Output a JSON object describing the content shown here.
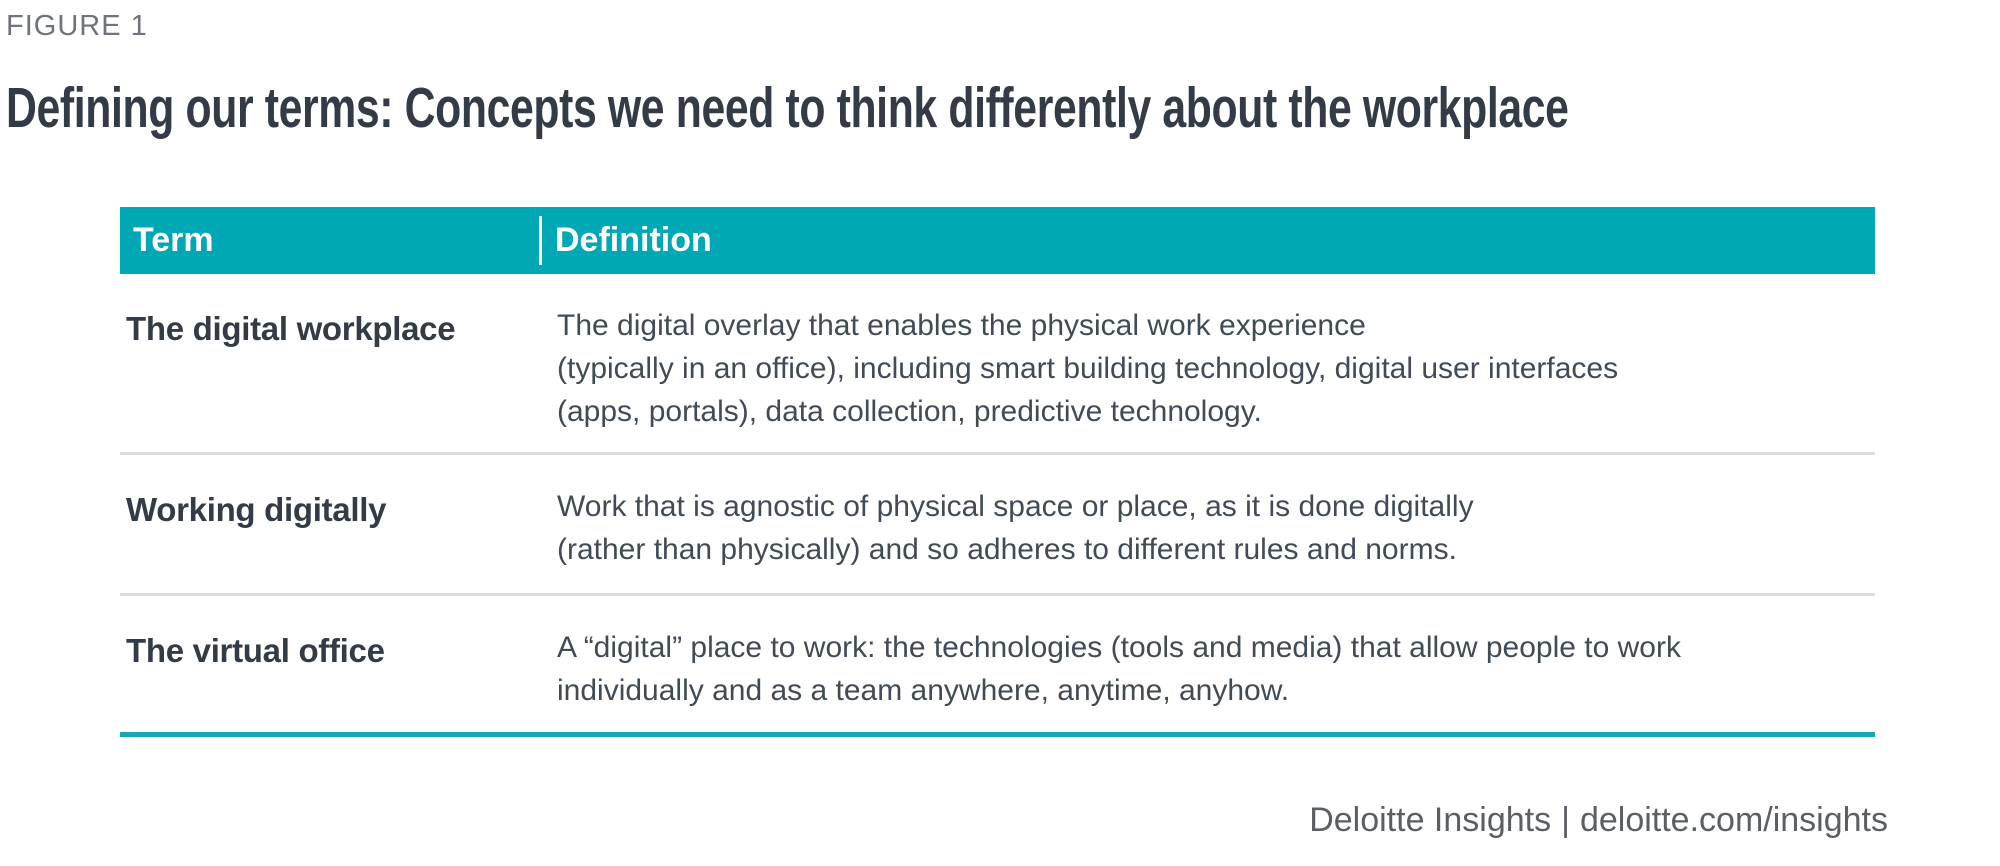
{
  "figure": {
    "label": "FIGURE 1",
    "title": "Defining our terms: Concepts we need to think differently about the workplace"
  },
  "table": {
    "columns": {
      "term": "Term",
      "definition": "Definition"
    },
    "rows": [
      {
        "term": "The digital workplace",
        "definition": "The digital overlay that enables the physical work experience\n(typically in an office), including smart building technology, digital user interfaces\n(apps, portals), data collection, predictive technology."
      },
      {
        "term": "Working digitally",
        "definition": "Work that is agnostic of physical space or place, as it is done digitally\n(rather than physically) and so adheres to different rules and norms."
      },
      {
        "term": "The virtual office",
        "definition": "A “digital” place to work: the technologies (tools and media) that allow people to work\nindividually and as a team anywhere, anytime, anyhow."
      }
    ]
  },
  "footer": {
    "brand": "Deloitte Insights",
    "separator": "|",
    "url": "deloitte.com/insights"
  },
  "colors": {
    "accent_teal": "#00A7B5",
    "bottom_rule_teal": "#14A7B8",
    "header_text": "#FFFFFF",
    "title_text": "#333B47",
    "body_text": "#414B57",
    "figure_label_text": "#6E747B",
    "row_divider": "#DBDBDB",
    "footer_text": "#5A5F64"
  }
}
